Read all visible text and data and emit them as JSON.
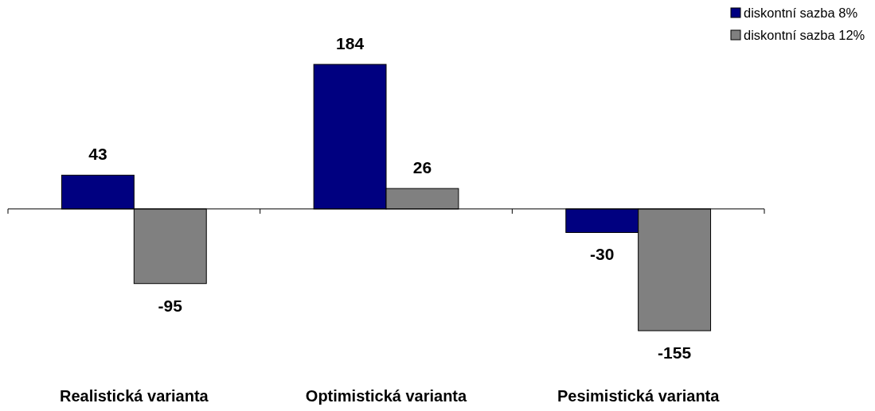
{
  "chart_data": {
    "type": "bar",
    "categories": [
      "Realistická varianta",
      "Optimistická varianta",
      "Pesimistická varianta"
    ],
    "series": [
      {
        "name": "diskontní sazba 8%",
        "color": "#000080",
        "values": [
          43,
          184,
          -30
        ]
      },
      {
        "name": "diskontní sazba 12%",
        "color": "#808080",
        "values": [
          -95,
          26,
          -155
        ]
      }
    ],
    "data_labels": true,
    "legend": "top right"
  }
}
